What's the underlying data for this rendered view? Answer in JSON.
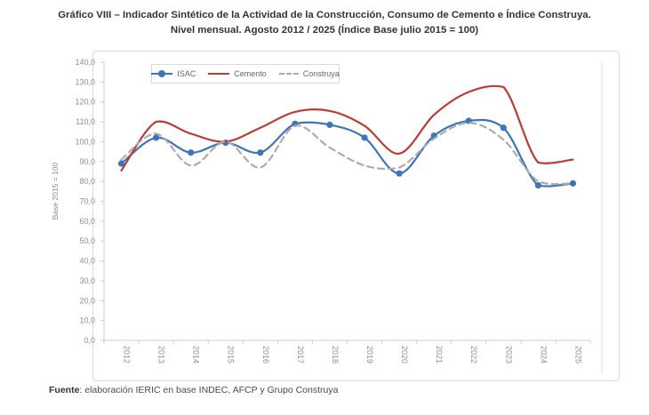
{
  "title": {
    "line1": "Gráfico VIII – Indicador Sintético de la Actividad de la Construcción, Consumo de Cemento e Índice Construya.",
    "line2": "Nivel mensual. Agosto 2012 / 2025 (Índice Base julio 2015 = 100)"
  },
  "footer": {
    "label": "Fuente",
    "text": ": elaboración IERIC en base INDEC, AFCP y Grupo Construya"
  },
  "chart_data": {
    "type": "line",
    "title": "Indicador Sintético de la Actividad de la Construcción, Consumo de Cemento e Índice Construya",
    "ylabel": "Base 2015 = 100",
    "ylim": [
      0,
      140
    ],
    "ytick_step": 10,
    "y_tick_labels": [
      "0,0",
      "10,0",
      "20,0",
      "30,0",
      "40,0",
      "50,0",
      "60,0",
      "70,0",
      "80,0",
      "90,0",
      "100,0",
      "110,0",
      "120,0",
      "130,0",
      "140,0"
    ],
    "categories": [
      "2012",
      "2013",
      "2014",
      "2015",
      "2016",
      "2017",
      "2018",
      "2019",
      "2020",
      "2021",
      "2022",
      "2023",
      "2024",
      "2025"
    ],
    "grid": "off",
    "legend_position": "top-left-inside",
    "series": [
      {
        "name": "ISAC",
        "color": "#3E74B9",
        "style": "solid",
        "markers": true,
        "values": [
          89,
          102,
          94.5,
          99.5,
          94.5,
          109,
          108.5,
          102,
          84,
          103,
          110.5,
          107,
          78,
          79
        ]
      },
      {
        "name": "Cemento",
        "color": "#BC3B33",
        "style": "solid",
        "markers": false,
        "values": [
          85.5,
          110,
          104,
          100,
          107,
          115,
          115.5,
          108,
          94,
          113.5,
          125,
          127.5,
          89.5,
          91
        ]
      },
      {
        "name": "Construya",
        "color": "#ACACAC",
        "style": "dashed",
        "markers": false,
        "values": [
          91,
          104,
          88,
          100,
          87,
          108,
          97,
          88,
          87,
          101.5,
          109.5,
          101,
          80,
          79
        ]
      }
    ],
    "axis_color": "#cfcfcf",
    "tick_label_color": "#8f8f8f"
  }
}
